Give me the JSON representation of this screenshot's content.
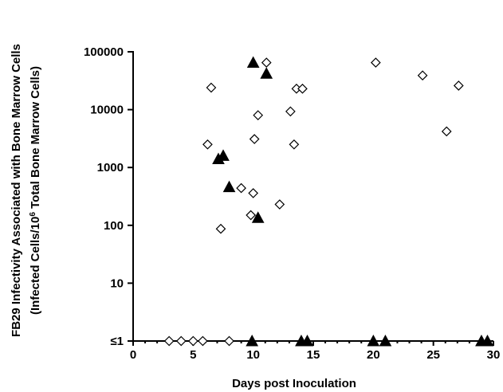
{
  "chart_data": {
    "type": "scatter",
    "title": "",
    "xlabel": "Days post Inoculation",
    "ylabel_line1": "FB29 Infectivity Associated with Bone Marrow Cells",
    "ylabel_line2_parts": [
      "(Infected Cells/10",
      "6",
      " Total Bone Marrow Cells)"
    ],
    "x_axis": {
      "min": 0,
      "max": 30,
      "ticks": [
        0,
        5,
        10,
        15,
        20,
        25,
        30
      ],
      "tick_labels": [
        "0",
        "5",
        "10",
        "15",
        "20",
        "25",
        "30"
      ]
    },
    "y_axis": {
      "scale": "log",
      "min": 1,
      "max": 100000,
      "ticks": [
        1,
        10,
        100,
        1000,
        10000,
        100000
      ],
      "tick_labels": [
        "≤1",
        "10",
        "100",
        "1000",
        "10000",
        "100000"
      ]
    },
    "grid": false,
    "legend": "none",
    "series": [
      {
        "marker": "open-diamond",
        "points": [
          {
            "x": 3,
            "y": 1
          },
          {
            "x": 4,
            "y": 1
          },
          {
            "x": 5,
            "y": 1
          },
          {
            "x": 5.8,
            "y": 1
          },
          {
            "x": 8,
            "y": 1
          },
          {
            "x": 6.2,
            "y": 2500
          },
          {
            "x": 6.5,
            "y": 24000
          },
          {
            "x": 7.3,
            "y": 87
          },
          {
            "x": 9,
            "y": 440
          },
          {
            "x": 9.8,
            "y": 150
          },
          {
            "x": 10,
            "y": 360
          },
          {
            "x": 10.1,
            "y": 3100
          },
          {
            "x": 10.4,
            "y": 8000
          },
          {
            "x": 11.1,
            "y": 65000
          },
          {
            "x": 12.2,
            "y": 230
          },
          {
            "x": 13.1,
            "y": 9300
          },
          {
            "x": 13.4,
            "y": 2500
          },
          {
            "x": 13.6,
            "y": 23000
          },
          {
            "x": 14.1,
            "y": 23000
          },
          {
            "x": 20.2,
            "y": 65000
          },
          {
            "x": 24.1,
            "y": 39000
          },
          {
            "x": 26.1,
            "y": 4200
          },
          {
            "x": 27.1,
            "y": 26000
          }
        ]
      },
      {
        "marker": "filled-triangle",
        "points": [
          {
            "x": 7.1,
            "y": 1400
          },
          {
            "x": 7.5,
            "y": 1600
          },
          {
            "x": 8,
            "y": 460
          },
          {
            "x": 9.9,
            "y": 1
          },
          {
            "x": 10,
            "y": 65000
          },
          {
            "x": 10.4,
            "y": 135
          },
          {
            "x": 11.1,
            "y": 42000
          },
          {
            "x": 14,
            "y": 1
          },
          {
            "x": 14.5,
            "y": 1
          },
          {
            "x": 20,
            "y": 1
          },
          {
            "x": 21,
            "y": 1
          },
          {
            "x": 29,
            "y": 1
          },
          {
            "x": 29.5,
            "y": 1
          }
        ]
      }
    ]
  }
}
